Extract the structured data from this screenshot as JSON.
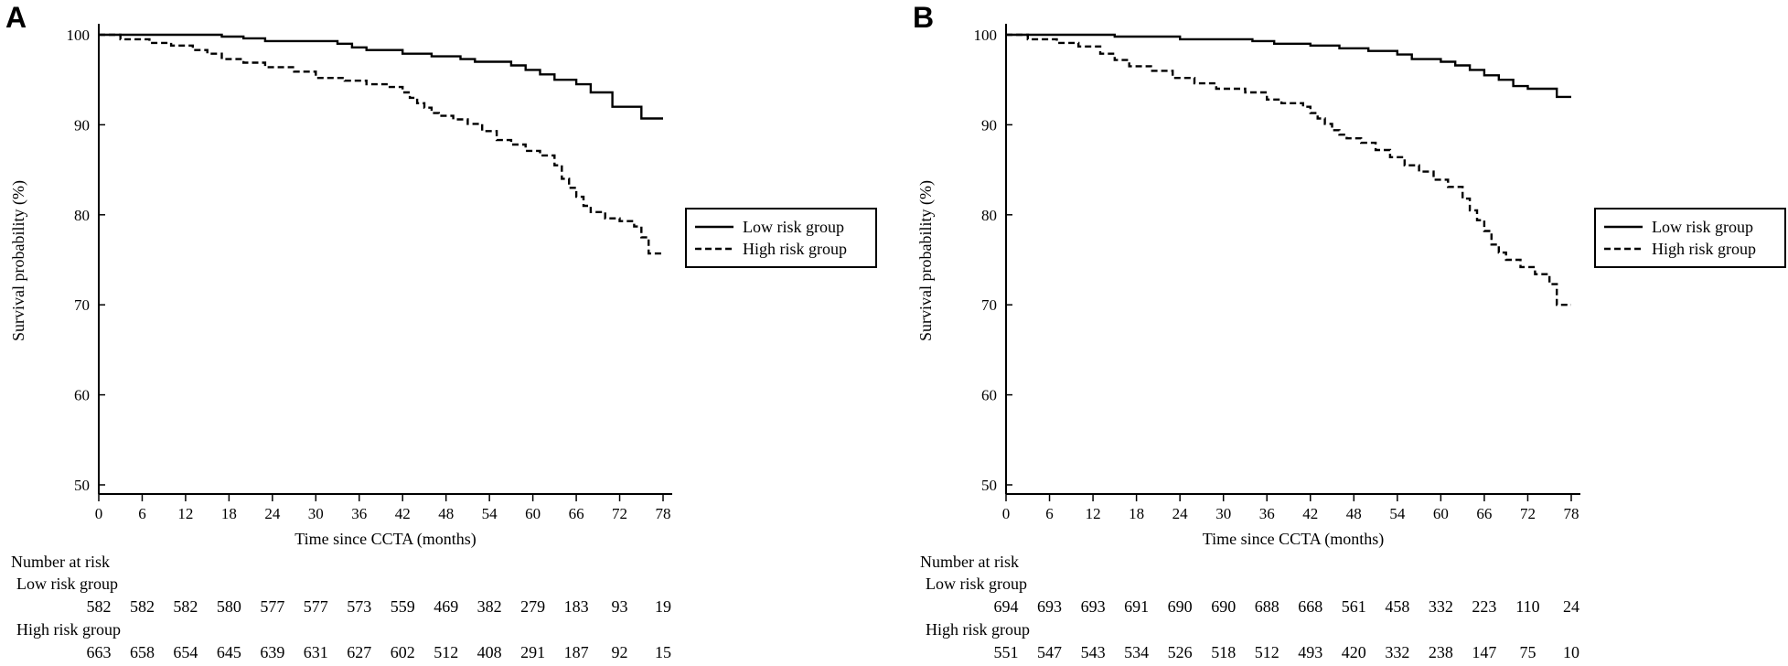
{
  "chart_data": [
    {
      "type": "line",
      "panel": "A",
      "xlabel": "Time since CCTA (months)",
      "ylabel": "Survival probability (%)",
      "xlim": [
        0,
        78
      ],
      "ylim": [
        50,
        100
      ],
      "x_ticks": [
        "0",
        "6",
        "12",
        "18",
        "24",
        "30",
        "36",
        "42",
        "48",
        "54",
        "60",
        "66",
        "72",
        "78"
      ],
      "y_ticks": [
        "50",
        "60",
        "70",
        "80",
        "90",
        "100"
      ],
      "legend": [
        "Low risk group",
        "High risk group"
      ],
      "series": [
        {
          "name": "Low risk group",
          "style": "solid",
          "x": [
            0,
            14,
            17,
            20,
            23,
            33,
            35,
            37,
            42,
            46,
            50,
            52,
            57,
            59,
            61,
            63,
            66,
            68,
            71,
            75,
            78
          ],
          "y": [
            100,
            100,
            99.8,
            99.6,
            99.3,
            99.0,
            98.6,
            98.3,
            97.9,
            97.6,
            97.3,
            97.0,
            96.6,
            96.1,
            95.6,
            95.0,
            94.5,
            93.6,
            92.0,
            90.7,
            90.7
          ]
        },
        {
          "name": "High risk group",
          "style": "dashed",
          "x": [
            0,
            3,
            7,
            10,
            13,
            15,
            17,
            20,
            23,
            27,
            30,
            34,
            37,
            40,
            42,
            43,
            44,
            45,
            46,
            47,
            49,
            51,
            53,
            55,
            57,
            59,
            61,
            63,
            64,
            65,
            66,
            67,
            68,
            70,
            72,
            74,
            75,
            76,
            78
          ],
          "y": [
            100,
            99.5,
            99.1,
            98.8,
            98.3,
            97.9,
            97.3,
            96.9,
            96.4,
            95.9,
            95.2,
            94.9,
            94.5,
            94.2,
            93.6,
            93.0,
            92.4,
            91.9,
            91.3,
            91.0,
            90.6,
            90.1,
            89.3,
            88.3,
            87.8,
            87.1,
            86.6,
            85.5,
            84.0,
            83.0,
            82.0,
            81.0,
            80.3,
            79.6,
            79.3,
            78.7,
            77.5,
            75.7,
            75.7
          ]
        }
      ],
      "risk_table": {
        "title": "Number at risk",
        "groups": [
          {
            "label": "Low risk group",
            "values": [
              "582",
              "582",
              "582",
              "580",
              "577",
              "577",
              "573",
              "559",
              "469",
              "382",
              "279",
              "183",
              "93",
              "19"
            ]
          },
          {
            "label": "High risk group",
            "values": [
              "663",
              "658",
              "654",
              "645",
              "639",
              "631",
              "627",
              "602",
              "512",
              "408",
              "291",
              "187",
              "92",
              "15"
            ]
          }
        ]
      }
    },
    {
      "type": "line",
      "panel": "B",
      "xlabel": "Time since CCTA (months)",
      "ylabel": "Survival probability (%)",
      "xlim": [
        0,
        78
      ],
      "ylim": [
        50,
        100
      ],
      "x_ticks": [
        "0",
        "6",
        "12",
        "18",
        "24",
        "30",
        "36",
        "42",
        "48",
        "54",
        "60",
        "66",
        "72",
        "78"
      ],
      "y_ticks": [
        "50",
        "60",
        "70",
        "80",
        "90",
        "100"
      ],
      "legend": [
        "Low risk group",
        "High risk group"
      ],
      "series": [
        {
          "name": "Low risk group",
          "style": "solid",
          "x": [
            0,
            15,
            24,
            34,
            37,
            42,
            46,
            50,
            54,
            56,
            60,
            62,
            64,
            66,
            68,
            70,
            72,
            76,
            78
          ],
          "y": [
            100,
            99.8,
            99.5,
            99.3,
            99.0,
            98.8,
            98.5,
            98.2,
            97.8,
            97.3,
            97.0,
            96.6,
            96.1,
            95.5,
            95.0,
            94.3,
            94.0,
            93.1,
            93.1
          ]
        },
        {
          "name": "High risk group",
          "style": "dashed",
          "x": [
            0,
            3,
            7,
            10,
            13,
            15,
            17,
            20,
            23,
            26,
            29,
            33,
            36,
            38,
            41,
            42,
            43,
            44,
            45,
            46,
            47,
            49,
            51,
            53,
            55,
            57,
            59,
            61,
            63,
            64,
            65,
            66,
            67,
            68,
            69,
            71,
            73,
            75,
            76,
            78
          ],
          "y": [
            100,
            99.5,
            99.1,
            98.7,
            97.9,
            97.2,
            96.5,
            96.0,
            95.2,
            94.6,
            94.0,
            93.6,
            92.8,
            92.4,
            92.0,
            91.3,
            90.7,
            90.1,
            89.4,
            88.9,
            88.5,
            88.0,
            87.2,
            86.4,
            85.5,
            84.8,
            83.9,
            83.1,
            81.8,
            80.5,
            79.4,
            78.2,
            76.7,
            75.8,
            75.0,
            74.2,
            73.4,
            72.3,
            70.0,
            70.0
          ]
        }
      ],
      "risk_table": {
        "title": "Number at risk",
        "groups": [
          {
            "label": "Low risk group",
            "values": [
              "694",
              "693",
              "693",
              "691",
              "690",
              "690",
              "688",
              "668",
              "561",
              "458",
              "332",
              "223",
              "110",
              "24"
            ]
          },
          {
            "label": "High risk group",
            "values": [
              "551",
              "547",
              "543",
              "534",
              "526",
              "518",
              "512",
              "493",
              "420",
              "332",
              "238",
              "147",
              "75",
              "10"
            ]
          }
        ]
      }
    }
  ],
  "panels": [
    {
      "letter": "A"
    },
    {
      "letter": "B"
    }
  ]
}
